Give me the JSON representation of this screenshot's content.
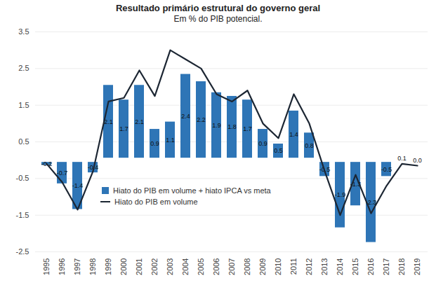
{
  "chart_data": {
    "type": "bar",
    "title": "Resultado primário estrutural do governo geral",
    "subtitle": "Em % do PIB potencial.",
    "categories": [
      "1995",
      "1996",
      "1997",
      "1998",
      "1999",
      "2000",
      "2001",
      "2002",
      "2003",
      "2004",
      "2005",
      "2006",
      "2007",
      "2008",
      "2009",
      "2010",
      "2011",
      "2012",
      "2013",
      "2014",
      "2015",
      "2016",
      "2017",
      "2018",
      "2019"
    ],
    "series": [
      {
        "name": "Hiato do PIB em volume + hiato IPCA vs meta",
        "type": "bar",
        "color": "#2e75b6",
        "values": [
          -0.2,
          -0.7,
          -1.4,
          -0.4,
          2.1,
          1.7,
          2.1,
          0.9,
          1.1,
          2.4,
          2.2,
          1.9,
          1.8,
          1.7,
          0.9,
          0.5,
          1.4,
          0.8,
          -0.5,
          -1.9,
          -1.3,
          -2.3,
          -0.5,
          0.1,
          0.0
        ],
        "value_labels": [
          "-0.2",
          "-0.7",
          "-1.4",
          "-0.4",
          "2.1",
          "1.7",
          "2.1",
          "0.9",
          "1.1",
          "2.4",
          "2.2",
          "1.9",
          "1.8",
          "1.7",
          "0.9",
          "0.5",
          "1.4",
          "0.8",
          "-0.5",
          "-1.9",
          "-1.3",
          "-2.3",
          "-0.5",
          "0.1",
          "0.0"
        ]
      },
      {
        "name": "Hiato do PIB em volume",
        "type": "line",
        "color": "#1c2633",
        "values": [
          -0.1,
          -0.6,
          -1.35,
          -0.3,
          1.6,
          1.7,
          2.45,
          1.75,
          3.0,
          2.75,
          2.5,
          1.8,
          1.6,
          1.9,
          1.0,
          0.6,
          1.8,
          1.0,
          -0.3,
          -1.5,
          -0.4,
          -1.45,
          -0.7,
          -0.1,
          -0.15
        ]
      }
    ],
    "ylim": [
      -2.5,
      3.5
    ],
    "yticks": [
      -2.5,
      -1.5,
      -0.5,
      0.5,
      1.5,
      2.5,
      3.5
    ],
    "grid": true,
    "legend": "lower left",
    "data_labels": true
  }
}
